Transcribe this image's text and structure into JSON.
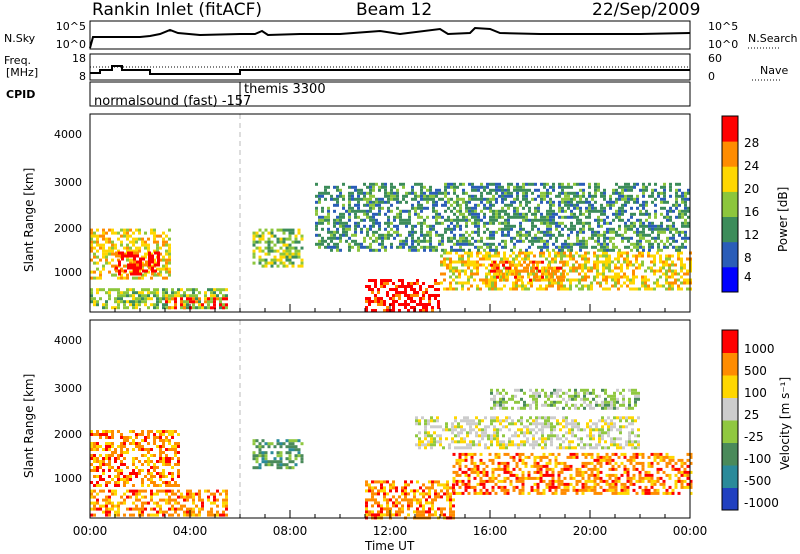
{
  "header": {
    "station": "Rankin Inlet (fitACF)",
    "beam": "Beam 12",
    "date": "22/Sep/2009"
  },
  "noise_panel": {
    "left_label": "N.Sky",
    "right_label": "N.Search",
    "left_ticks": [
      "10^5",
      "10^0"
    ],
    "right_ticks": [
      "10^5",
      "10^0"
    ]
  },
  "freq_panel": {
    "left_label_1": "Freq.",
    "left_label_2": "[MHz]",
    "right_label": "Nave",
    "left_ticks": [
      "18",
      "8"
    ],
    "right_ticks": [
      "60",
      "0"
    ]
  },
  "cpid": {
    "label": "CPID",
    "segment_1": "normalsound (fast) -157",
    "segment_2": "themis 3300"
  },
  "chart_data": [
    {
      "type": "heatmap",
      "name": "power",
      "ylabel": "Slant Range [km]",
      "yticks": [
        "4000",
        "3000",
        "2000",
        "1000"
      ],
      "ylim": [
        180,
        4500
      ],
      "xlim": [
        0,
        24
      ],
      "colorbar_label": "Power [dB]",
      "colorbar_ticks": [
        "28",
        "24",
        "20",
        "16",
        "12",
        "8",
        "4"
      ],
      "colors": [
        "#0000ff",
        "#2a5db8",
        "#3c8c5a",
        "#8cc63c",
        "#ffd700",
        "#ff8c00",
        "#ff0000"
      ],
      "regions": [
        {
          "t0": 0.0,
          "t1": 3.2,
          "r0": 900,
          "r1": 2000,
          "level": 4
        },
        {
          "t0": 1.0,
          "t1": 2.8,
          "r0": 1000,
          "r1": 1500,
          "level": 6
        },
        {
          "t0": 0.0,
          "t1": 5.5,
          "r0": 250,
          "r1": 700,
          "level": 3
        },
        {
          "t0": 3.0,
          "t1": 5.5,
          "r0": 250,
          "r1": 500,
          "level": 6
        },
        {
          "t0": 6.5,
          "t1": 8.5,
          "r0": 1200,
          "r1": 2000,
          "level": 3
        },
        {
          "t0": 11.0,
          "t1": 14.0,
          "r0": 200,
          "r1": 900,
          "level": 6
        },
        {
          "t0": 14.0,
          "t1": 24.0,
          "r0": 700,
          "r1": 1500,
          "level": 4
        },
        {
          "t0": 16.0,
          "t1": 19.0,
          "r0": 900,
          "r1": 1300,
          "level": 5
        },
        {
          "t0": 9.0,
          "t1": 24.0,
          "r0": 1500,
          "r1": 3000,
          "level": 2
        }
      ]
    },
    {
      "type": "heatmap",
      "name": "velocity",
      "ylabel": "Slant Range [km]",
      "yticks": [
        "4000",
        "3000",
        "2000",
        "1000"
      ],
      "ylim": [
        180,
        4500
      ],
      "xlim": [
        0,
        24
      ],
      "colorbar_label": "Velocity [m s⁻¹]",
      "colorbar_ticks": [
        "1000",
        "500",
        "100",
        "25",
        "-25",
        "-100",
        "-500",
        "-1000"
      ],
      "colors": [
        "#2040c0",
        "#2a8a9a",
        "#4a8a5a",
        "#90c840",
        "#cccccc",
        "#ffd700",
        "#ff8c00",
        "#ff0000"
      ],
      "regions": [
        {
          "t0": 0.0,
          "t1": 3.5,
          "r0": 900,
          "r1": 2100,
          "level": 6
        },
        {
          "t0": 0.0,
          "t1": 5.5,
          "r0": 250,
          "r1": 800,
          "level": 6
        },
        {
          "t0": 6.5,
          "t1": 8.5,
          "r0": 1300,
          "r1": 1900,
          "level": 2
        },
        {
          "t0": 11.0,
          "t1": 14.5,
          "r0": 200,
          "r1": 1000,
          "level": 6
        },
        {
          "t0": 14.5,
          "t1": 24.0,
          "r0": 700,
          "r1": 1600,
          "level": 6
        },
        {
          "t0": 13.0,
          "t1": 22.0,
          "r0": 1700,
          "r1": 2400,
          "level": 4
        },
        {
          "t0": 16.0,
          "t1": 22.0,
          "r0": 2600,
          "r1": 3000,
          "level": 3
        }
      ]
    }
  ],
  "xaxis": {
    "label": "Time UT",
    "ticks": [
      "00:00",
      "04:00",
      "08:00",
      "12:00",
      "16:00",
      "20:00",
      "00:00"
    ]
  }
}
